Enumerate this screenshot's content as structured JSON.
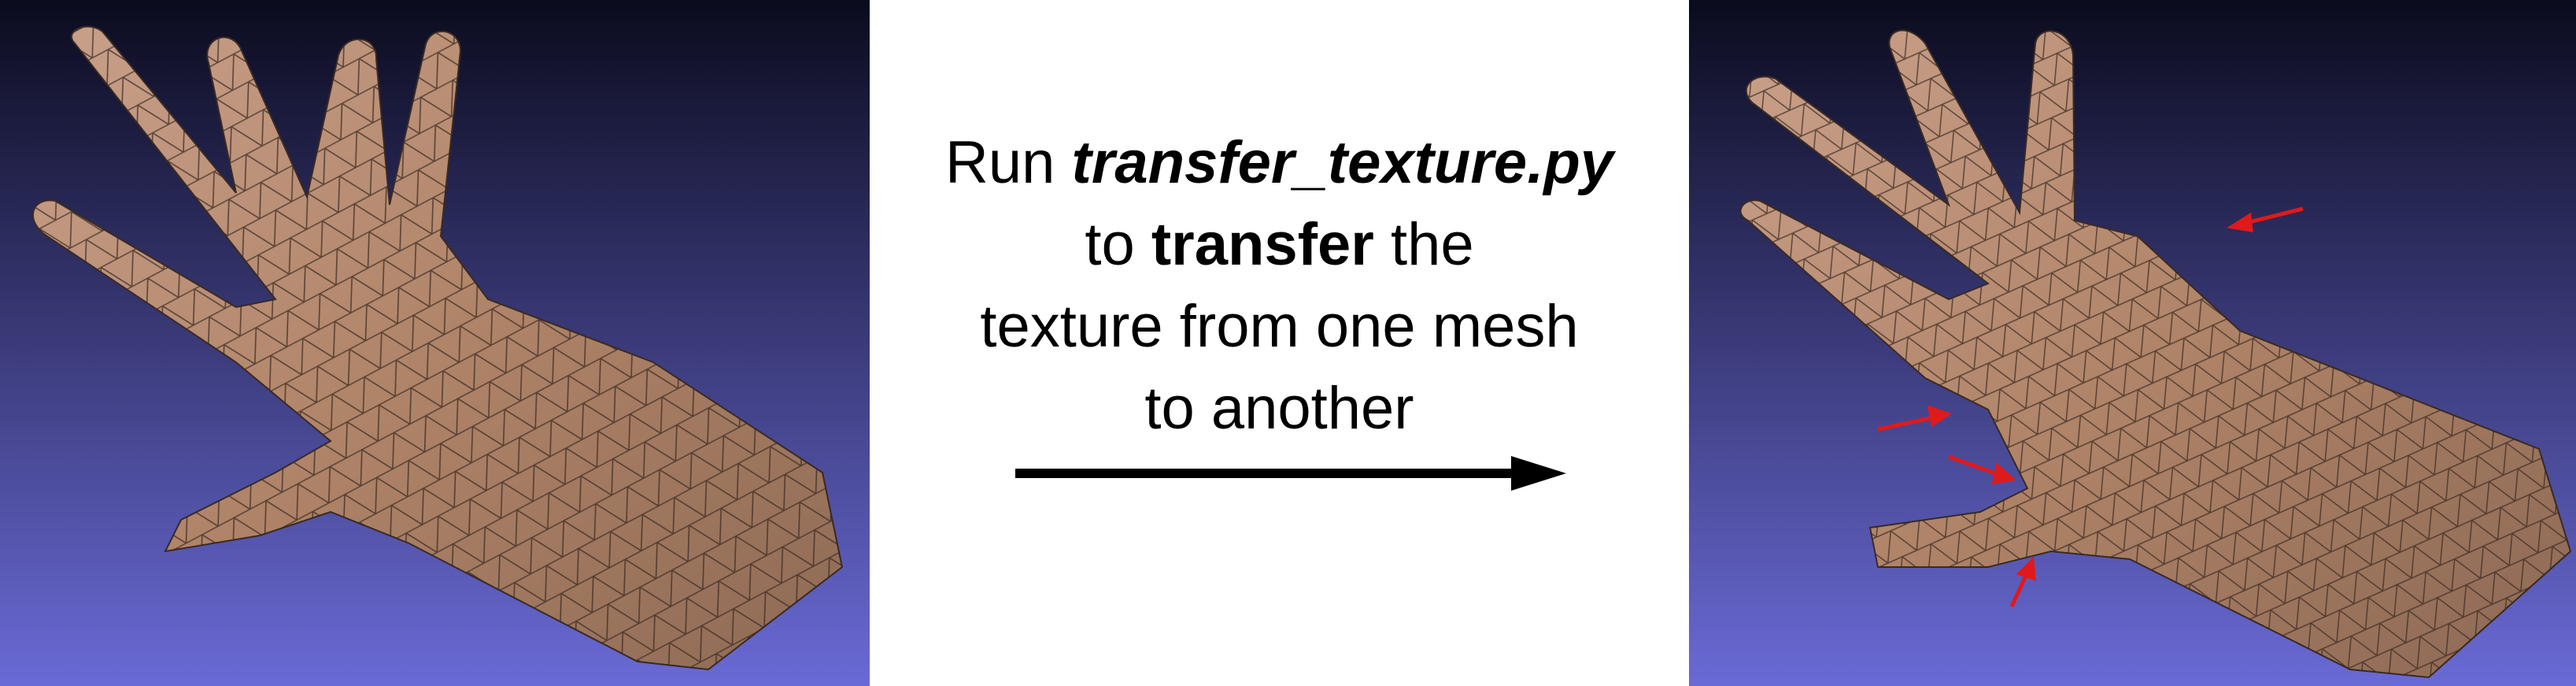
{
  "caption": {
    "line1_prefix": "Run ",
    "line1_script": "transfer_texture.py",
    "line2_prefix": "to ",
    "line2_bold": "transfer",
    "line2_suffix": " the",
    "line3": "texture from one mesh",
    "line4": "to another"
  },
  "colors": {
    "background_top": "#0b0b1e",
    "background_bottom": "#6a6ad6",
    "skin": "#b08468",
    "wire": "#3a2a22",
    "arrow": "#000000",
    "marker": "#e01a1a"
  },
  "panels": {
    "source": "source-mesh",
    "target": "target-mesh-with-markers"
  }
}
